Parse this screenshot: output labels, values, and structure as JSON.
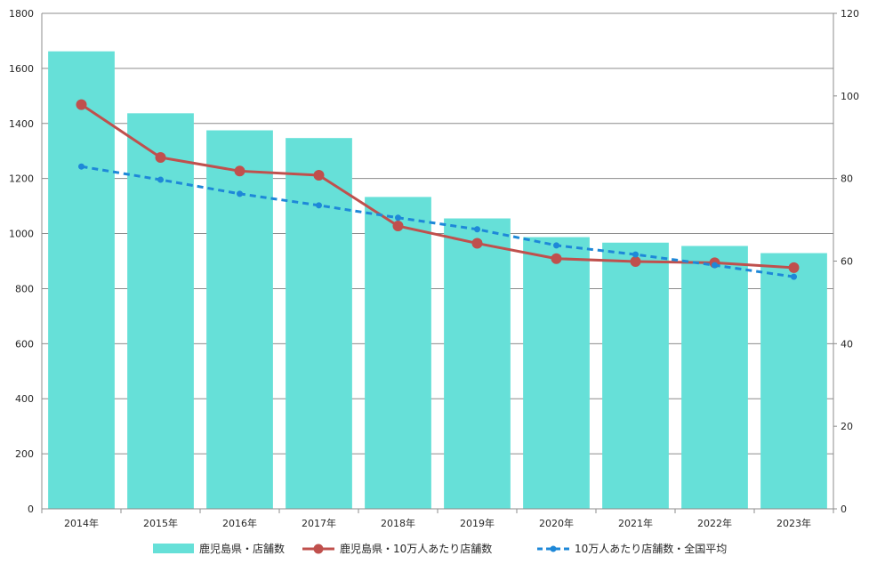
{
  "chart_data": {
    "type": "bar",
    "categories": [
      "2014年",
      "2015年",
      "2016年",
      "2017年",
      "2018年",
      "2019年",
      "2020年",
      "2021年",
      "2022年",
      "2023年"
    ],
    "series": [
      {
        "name": "鹿児島県・店舗数",
        "kind": "bar",
        "axis": "left",
        "color": "#66E0D8",
        "values": [
          1662,
          1437,
          1375,
          1347,
          1133,
          1055,
          987,
          967,
          955,
          929
        ]
      },
      {
        "name": "鹿児島県・10万人あたり店舗数",
        "kind": "line",
        "axis": "right",
        "color": "#C0504D",
        "line_style": "solid",
        "values": [
          97.9,
          85.1,
          81.8,
          80.8,
          68.5,
          64.3,
          60.6,
          59.9,
          59.6,
          58.4
        ]
      },
      {
        "name": "10万人あたり店舗数・全国平均",
        "kind": "line",
        "axis": "right",
        "color": "#1E88D8",
        "line_style": "dashed",
        "values": [
          82.9,
          79.7,
          76.3,
          73.5,
          70.5,
          67.7,
          63.8,
          61.6,
          59.0,
          56.2
        ]
      }
    ],
    "y_left": {
      "min": 0,
      "max": 1800,
      "ticks": [
        "0",
        "200",
        "400",
        "600",
        "800",
        "1000",
        "1200",
        "1400",
        "1600",
        "1800"
      ]
    },
    "y_right": {
      "min": 0,
      "max": 120,
      "ticks": [
        "0",
        "20",
        "40",
        "60",
        "80",
        "100",
        "120"
      ]
    },
    "grid": true,
    "legend_position": "bottom",
    "title": "",
    "xlabel": "",
    "ylabel": ""
  }
}
